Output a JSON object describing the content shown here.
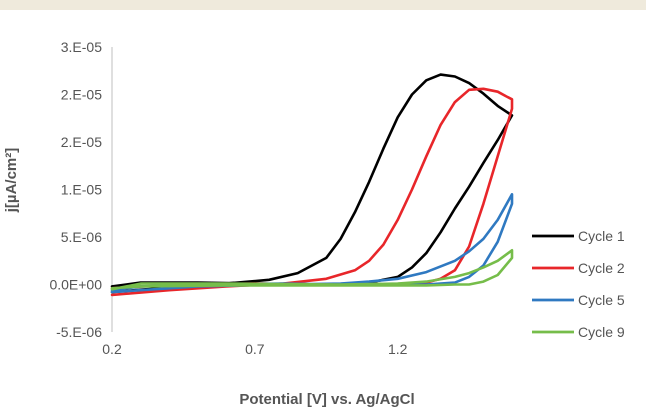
{
  "chart_data": {
    "type": "line",
    "title": "",
    "xlabel": "Potential [V] vs. Ag/AgCl",
    "ylabel": "j[µA/cm²]",
    "xlim": [
      0.2,
      1.6
    ],
    "ylim": [
      -5e-06,
      2.5e-05
    ],
    "x_ticks": [
      0.2,
      0.7,
      1.2
    ],
    "x_tick_labels": [
      "0.2",
      "0.7",
      "1.2"
    ],
    "y_ticks": [
      -5e-06,
      0.0,
      5e-06,
      1e-05,
      1.5e-05,
      2e-05,
      2.5e-05
    ],
    "y_tick_labels": [
      "-5.E-06",
      "0.0E+00",
      "5.E-06",
      "1.E-05",
      "2.E-05",
      "2.E-05",
      "3.E-05"
    ],
    "grid": false,
    "legend_position": "right",
    "series": [
      {
        "name": "Cycle 1",
        "color": "#000000",
        "x": [
          0.2,
          0.4,
          0.6,
          0.75,
          0.85,
          0.95,
          1.0,
          1.05,
          1.1,
          1.15,
          1.2,
          1.25,
          1.3,
          1.35,
          1.4,
          1.45,
          1.5,
          1.55,
          1.6,
          1.6,
          1.55,
          1.5,
          1.45,
          1.4,
          1.35,
          1.3,
          1.25,
          1.2,
          1.1,
          1.0,
          0.9,
          0.7,
          0.5,
          0.3,
          0.2
        ],
        "y": [
          -8e-07,
          -3e-07,
          1e-07,
          5e-07,
          1.2e-06,
          2.8e-06,
          4.8e-06,
          7.6e-06,
          1.08e-05,
          1.43e-05,
          1.76e-05,
          2e-05,
          2.15e-05,
          2.21e-05,
          2.19e-05,
          2.12e-05,
          2.01e-05,
          1.88e-05,
          1.78e-05,
          1.78e-05,
          1.52e-05,
          1.28e-05,
          1.03e-05,
          8e-06,
          5.5e-06,
          3.3e-06,
          1.8e-06,
          8e-07,
          2e-07,
          0.0,
          0.0,
          1e-07,
          2e-07,
          2e-07,
          -2e-07
        ]
      },
      {
        "name": "Cycle 2",
        "color": "#e8262a",
        "x": [
          0.2,
          0.4,
          0.6,
          0.8,
          0.95,
          1.05,
          1.1,
          1.15,
          1.2,
          1.25,
          1.3,
          1.35,
          1.4,
          1.45,
          1.5,
          1.55,
          1.58,
          1.6,
          1.6,
          1.55,
          1.5,
          1.45,
          1.4,
          1.35,
          1.3,
          1.2,
          1.1,
          0.9,
          0.7,
          0.5,
          0.3,
          0.2
        ],
        "y": [
          -1.1e-06,
          -6e-07,
          -2e-07,
          1e-07,
          6e-07,
          1.5e-06,
          2.5e-06,
          4.2e-06,
          6.8e-06,
          1e-05,
          1.35e-05,
          1.68e-05,
          1.92e-05,
          2.05e-05,
          2.06e-05,
          2.03e-05,
          1.98e-05,
          1.95e-05,
          1.85e-05,
          1.35e-05,
          8.5e-06,
          4e-06,
          1.5e-06,
          6e-07,
          2e-07,
          0.0,
          0.0,
          0.0,
          1e-07,
          0.0,
          -2e-07,
          -4e-07
        ]
      },
      {
        "name": "Cycle 5",
        "color": "#2f79c1",
        "x": [
          0.2,
          0.5,
          0.8,
          1.0,
          1.1,
          1.2,
          1.3,
          1.4,
          1.45,
          1.5,
          1.55,
          1.6,
          1.6,
          1.55,
          1.5,
          1.45,
          1.4,
          1.3,
          1.2,
          1.0,
          0.8,
          0.5,
          0.3,
          0.2
        ],
        "y": [
          -8e-07,
          -2e-07,
          0.0,
          1e-07,
          3e-07,
          6e-07,
          1.3e-06,
          2.5e-06,
          3.5e-06,
          4.8e-06,
          6.8e-06,
          9.5e-06,
          8.5e-06,
          4.5e-06,
          2e-06,
          8e-07,
          2e-07,
          0.0,
          0.0,
          0.0,
          1e-07,
          0.0,
          -2e-07,
          -6e-07
        ]
      },
      {
        "name": "Cycle 9",
        "color": "#76bd4a",
        "x": [
          0.2,
          0.3,
          0.6,
          1.0,
          1.2,
          1.3,
          1.4,
          1.45,
          1.5,
          1.55,
          1.6,
          1.6,
          1.55,
          1.5,
          1.45,
          1.4,
          1.3,
          1.0,
          0.6,
          0.3,
          0.2
        ],
        "y": [
          -5e-07,
          1e-07,
          1e-07,
          0.0,
          1e-07,
          3e-07,
          8e-07,
          1.2e-06,
          1.8e-06,
          2.5e-06,
          3.6e-06,
          2.8e-06,
          1e-06,
          3e-07,
          0.0,
          0.0,
          -1e-07,
          -1e-07,
          -1e-07,
          -2e-07,
          -4e-07
        ]
      }
    ]
  }
}
